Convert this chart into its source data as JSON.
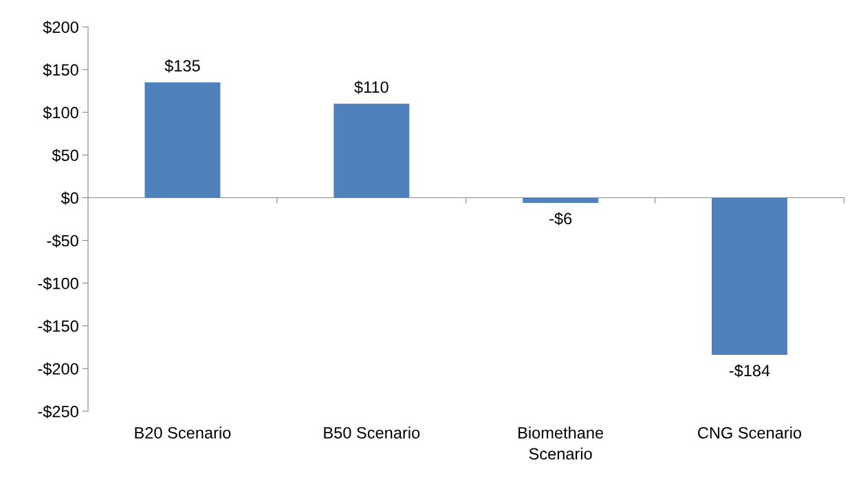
{
  "chart_data": {
    "type": "bar",
    "categories": [
      "B20 Scenario",
      "B50 Scenario",
      "Biomethane\nScenario",
      "CNG Scenario"
    ],
    "values": [
      135,
      110,
      -6,
      -184
    ],
    "color": "#4f81bd",
    "value_labels": [
      "$135",
      "$110",
      "-$6",
      "-$184"
    ],
    "ylim": [
      -250,
      200
    ],
    "yticks": [
      {
        "value": -250,
        "label": "-$250"
      },
      {
        "value": -200,
        "label": "-$200"
      },
      {
        "value": -150,
        "label": "-$150"
      },
      {
        "value": -100,
        "label": "-$100"
      },
      {
        "value": -50,
        "label": "-$50"
      },
      {
        "value": 0,
        "label": "$0"
      },
      {
        "value": 50,
        "label": "$50"
      },
      {
        "value": 100,
        "label": "$100"
      },
      {
        "value": 150,
        "label": "$150"
      },
      {
        "value": 200,
        "label": "$200"
      }
    ],
    "legend": false
  }
}
